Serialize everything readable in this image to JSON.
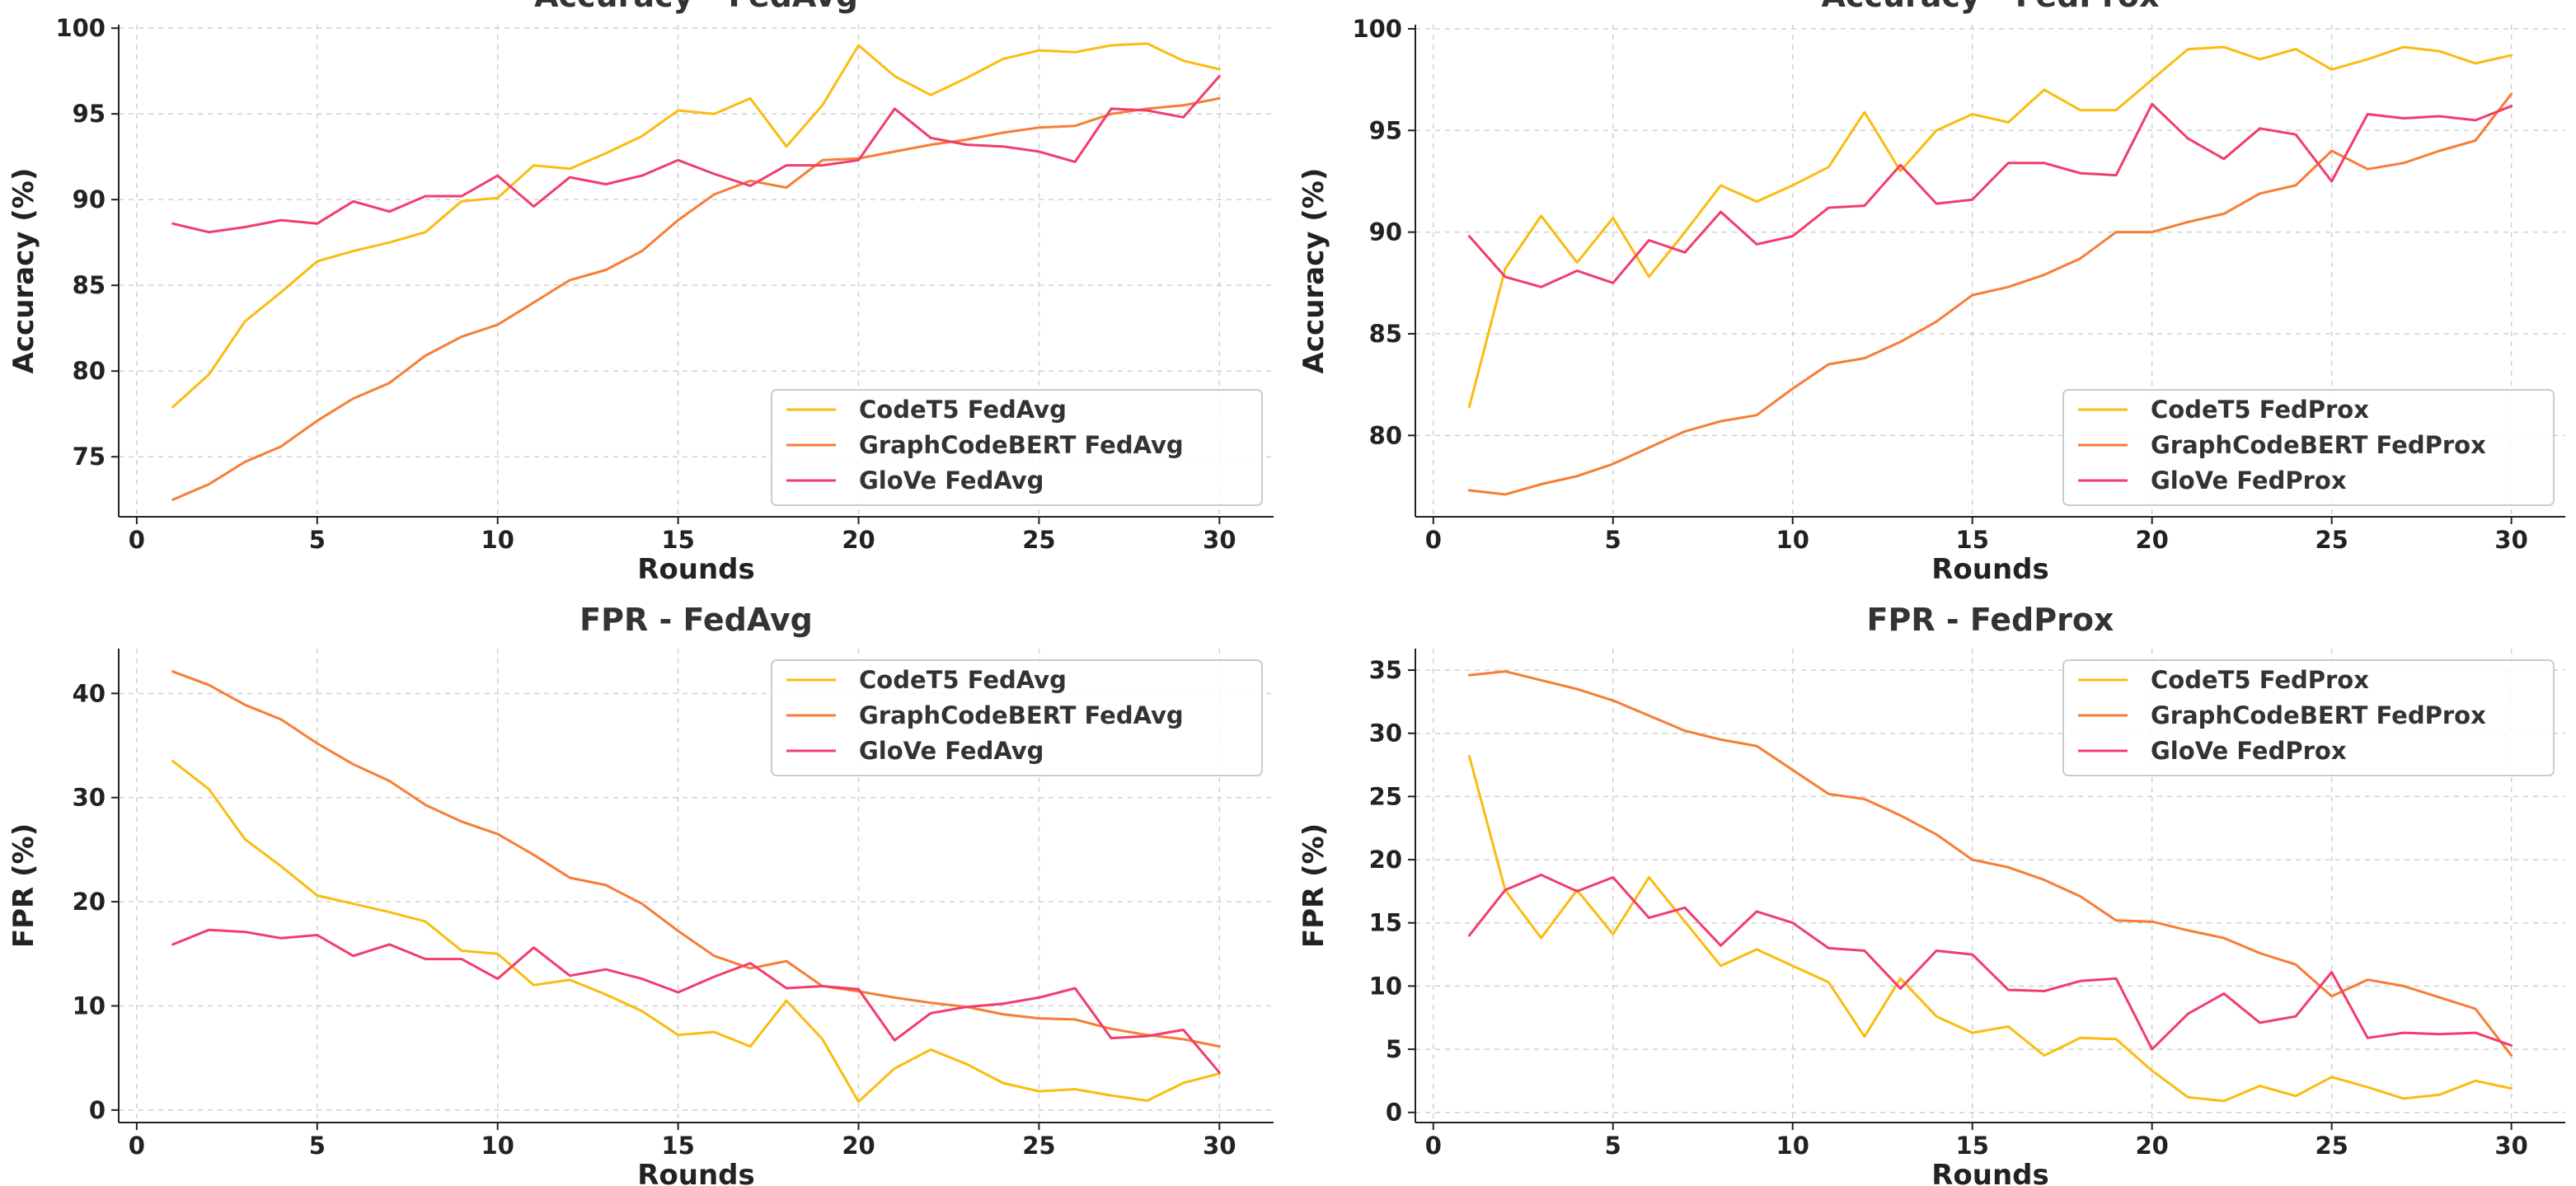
{
  "chart_data": [
    {
      "type": "line",
      "title": "Accuracy - FedAvg",
      "xlabel": "Rounds",
      "ylabel": "Accuracy (%)",
      "xlim": [
        -0.5,
        31.5
      ],
      "ylim": [
        71.5,
        100.2
      ],
      "xticks": [
        0,
        5,
        10,
        15,
        20,
        25,
        30
      ],
      "yticks": [
        75,
        80,
        85,
        90,
        95,
        100
      ],
      "grid": true,
      "legend_position": "lower-right",
      "x": [
        1,
        2,
        3,
        4,
        5,
        6,
        7,
        8,
        9,
        10,
        11,
        12,
        13,
        14,
        15,
        16,
        17,
        18,
        19,
        20,
        21,
        22,
        23,
        24,
        25,
        26,
        27,
        28,
        29,
        30
      ],
      "series": [
        {
          "name": "CodeT5 FedAvg",
          "color": "#fbbc10",
          "values": [
            77.9,
            79.8,
            82.9,
            84.6,
            86.4,
            87.0,
            87.5,
            88.1,
            89.9,
            90.1,
            92.0,
            91.8,
            92.7,
            93.7,
            95.2,
            95.0,
            95.9,
            93.1,
            95.5,
            99.0,
            97.2,
            96.1,
            97.1,
            98.2,
            98.7,
            98.6,
            99.0,
            99.1,
            98.1,
            97.6
          ]
        },
        {
          "name": "GraphCodeBERT FedAvg",
          "color": "#f77d36",
          "values": [
            72.5,
            73.4,
            74.7,
            75.6,
            77.1,
            78.4,
            79.3,
            80.9,
            82.0,
            82.7,
            84.0,
            85.3,
            85.9,
            87.0,
            88.8,
            90.3,
            91.1,
            90.7,
            92.3,
            92.4,
            92.8,
            93.2,
            93.5,
            93.9,
            94.2,
            94.3,
            95.0,
            95.3,
            95.5,
            95.9
          ]
        },
        {
          "name": "GloVe FedAvg",
          "color": "#f23d6c",
          "values": [
            88.6,
            88.1,
            88.4,
            88.8,
            88.6,
            89.9,
            89.3,
            90.2,
            90.2,
            91.4,
            89.6,
            91.3,
            90.9,
            91.4,
            92.3,
            91.5,
            90.8,
            92.0,
            92.0,
            92.3,
            95.3,
            93.6,
            93.2,
            93.1,
            92.8,
            92.2,
            95.3,
            95.2,
            94.8,
            97.2
          ]
        }
      ]
    },
    {
      "type": "line",
      "title": "Accuracy - FedProx",
      "xlabel": "Rounds",
      "ylabel": "Accuracy (%)",
      "xlim": [
        -0.5,
        31.5
      ],
      "ylim": [
        76.0,
        100.2
      ],
      "xticks": [
        0,
        5,
        10,
        15,
        20,
        25,
        30
      ],
      "yticks": [
        80,
        85,
        90,
        95,
        100
      ],
      "grid": true,
      "legend_position": "lower-right",
      "x": [
        1,
        2,
        3,
        4,
        5,
        6,
        7,
        8,
        9,
        10,
        11,
        12,
        13,
        14,
        15,
        16,
        17,
        18,
        19,
        20,
        21,
        22,
        23,
        24,
        25,
        26,
        27,
        28,
        29,
        30
      ],
      "series": [
        {
          "name": "CodeT5 FedProx",
          "color": "#fbbc10",
          "values": [
            81.4,
            88.2,
            90.8,
            88.5,
            90.7,
            87.8,
            90.0,
            92.3,
            91.5,
            92.3,
            93.2,
            95.9,
            93.0,
            95.0,
            95.8,
            95.4,
            97.0,
            96.0,
            96.0,
            97.5,
            99.0,
            99.1,
            98.5,
            99.0,
            98.0,
            98.5,
            99.1,
            98.9,
            98.3,
            98.7
          ]
        },
        {
          "name": "GraphCodeBERT FedProx",
          "color": "#f77d36",
          "values": [
            77.3,
            77.1,
            77.6,
            78.0,
            78.6,
            79.4,
            80.2,
            80.7,
            81.0,
            82.3,
            83.5,
            83.8,
            84.6,
            85.6,
            86.9,
            87.3,
            87.9,
            88.7,
            90.0,
            90.0,
            90.5,
            90.9,
            91.9,
            92.3,
            94.0,
            93.1,
            93.4,
            94.0,
            94.5,
            96.8
          ]
        },
        {
          "name": "GloVe FedProx",
          "color": "#f23d6c",
          "values": [
            89.8,
            87.8,
            87.3,
            88.1,
            87.5,
            89.6,
            89.0,
            91.0,
            89.4,
            89.8,
            91.2,
            91.3,
            93.3,
            91.4,
            91.6,
            93.4,
            93.4,
            92.9,
            92.8,
            96.3,
            94.6,
            93.6,
            95.1,
            94.8,
            92.5,
            95.8,
            95.6,
            95.7,
            95.5,
            96.2
          ]
        }
      ]
    },
    {
      "type": "line",
      "title": "FPR - FedAvg",
      "xlabel": "Rounds",
      "ylabel": "FPR (%)",
      "xlim": [
        -0.5,
        31.5
      ],
      "ylim": [
        -1.2,
        44.3
      ],
      "xticks": [
        0,
        5,
        10,
        15,
        20,
        25,
        30
      ],
      "yticks": [
        0,
        10,
        20,
        30,
        40
      ],
      "grid": true,
      "legend_position": "top-right",
      "x": [
        1,
        2,
        3,
        4,
        5,
        6,
        7,
        8,
        9,
        10,
        11,
        12,
        13,
        14,
        15,
        16,
        17,
        18,
        19,
        20,
        21,
        22,
        23,
        24,
        25,
        26,
        27,
        28,
        29,
        30
      ],
      "series": [
        {
          "name": "CodeT5 FedAvg",
          "color": "#fbbc10",
          "values": [
            33.5,
            30.8,
            26.0,
            23.4,
            20.6,
            19.8,
            19.0,
            18.1,
            15.3,
            15.0,
            12.0,
            12.5,
            11.1,
            9.5,
            7.2,
            7.5,
            6.1,
            10.5,
            6.8,
            0.8,
            4.0,
            5.8,
            4.4,
            2.6,
            1.8,
            2.0,
            1.4,
            0.9,
            2.6,
            3.5
          ]
        },
        {
          "name": "GraphCodeBERT FedAvg",
          "color": "#f77d36",
          "values": [
            42.1,
            40.8,
            38.9,
            37.5,
            35.2,
            33.2,
            31.6,
            29.3,
            27.7,
            26.5,
            24.5,
            22.3,
            21.6,
            19.8,
            17.2,
            14.8,
            13.6,
            14.3,
            11.9,
            11.4,
            10.8,
            10.3,
            9.9,
            9.2,
            8.8,
            8.7,
            7.8,
            7.2,
            6.8,
            6.1
          ]
        },
        {
          "name": "GloVe FedAvg",
          "color": "#f23d6c",
          "values": [
            15.9,
            17.3,
            17.1,
            16.5,
            16.8,
            14.8,
            15.9,
            14.5,
            14.5,
            12.6,
            15.6,
            12.9,
            13.5,
            12.6,
            11.3,
            12.8,
            14.1,
            11.7,
            11.9,
            11.6,
            6.7,
            9.3,
            9.9,
            10.2,
            10.8,
            11.7,
            6.9,
            7.1,
            7.7,
            3.6
          ]
        }
      ]
    },
    {
      "type": "line",
      "title": "FPR - FedProx",
      "xlabel": "Rounds",
      "ylabel": "FPR (%)",
      "xlim": [
        -0.5,
        31.5
      ],
      "ylim": [
        -0.8,
        36.7
      ],
      "xticks": [
        0,
        5,
        10,
        15,
        20,
        25,
        30
      ],
      "yticks": [
        0,
        5,
        10,
        15,
        20,
        25,
        30,
        35
      ],
      "grid": true,
      "legend_position": "top-right",
      "x": [
        1,
        2,
        3,
        4,
        5,
        6,
        7,
        8,
        9,
        10,
        11,
        12,
        13,
        14,
        15,
        16,
        17,
        18,
        19,
        20,
        21,
        22,
        23,
        24,
        25,
        26,
        27,
        28,
        29,
        30
      ],
      "series": [
        {
          "name": "CodeT5 FedProx",
          "color": "#fbbc10",
          "values": [
            28.2,
            17.6,
            13.8,
            17.6,
            14.1,
            18.6,
            15.1,
            11.6,
            12.9,
            11.6,
            10.3,
            6.0,
            10.6,
            7.6,
            6.3,
            6.8,
            4.5,
            5.9,
            5.8,
            3.3,
            1.2,
            0.9,
            2.1,
            1.3,
            2.8,
            2.0,
            1.1,
            1.4,
            2.5,
            1.9
          ]
        },
        {
          "name": "GraphCodeBERT FedProx",
          "color": "#f77d36",
          "values": [
            34.6,
            34.9,
            34.2,
            33.5,
            32.6,
            31.4,
            30.2,
            29.5,
            29.0,
            27.1,
            25.2,
            24.8,
            23.5,
            22.0,
            20.0,
            19.4,
            18.4,
            17.1,
            15.2,
            15.1,
            14.4,
            13.8,
            12.6,
            11.7,
            9.2,
            10.5,
            10.0,
            9.1,
            8.2,
            4.5
          ]
        },
        {
          "name": "GloVe FedProx",
          "color": "#f23d6c",
          "values": [
            14.0,
            17.6,
            18.8,
            17.5,
            18.6,
            15.4,
            16.2,
            13.2,
            15.9,
            15.0,
            13.0,
            12.8,
            9.8,
            12.8,
            12.5,
            9.7,
            9.6,
            10.4,
            10.6,
            5.0,
            7.8,
            9.4,
            7.1,
            7.6,
            11.1,
            5.9,
            6.3,
            6.2,
            6.3,
            5.3
          ]
        }
      ]
    }
  ]
}
